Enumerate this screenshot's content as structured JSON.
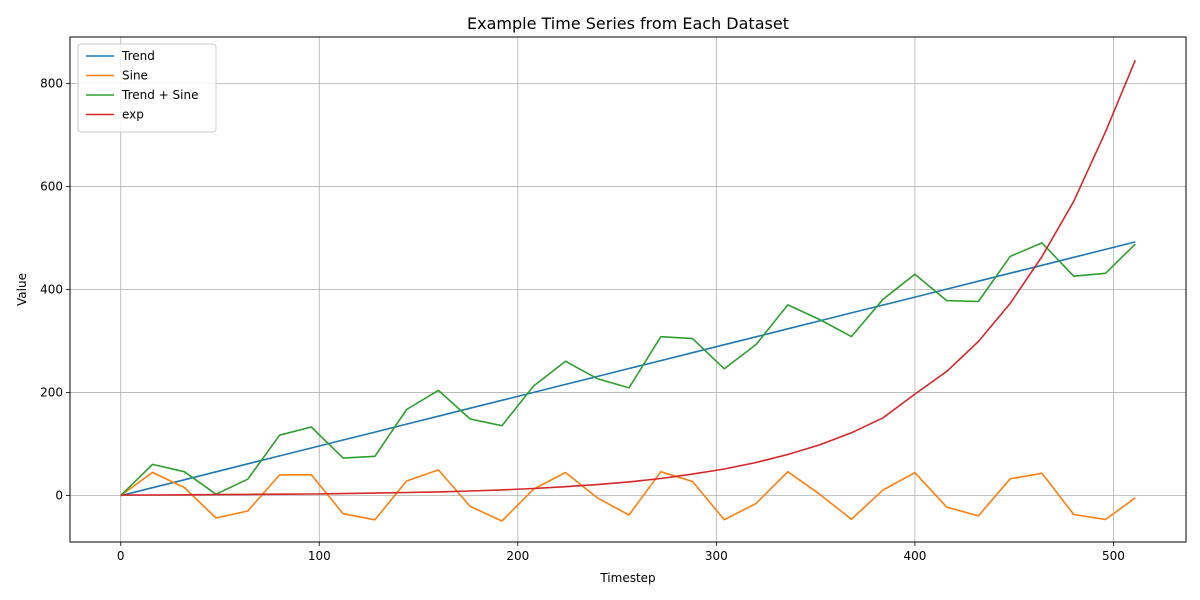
{
  "chart_data": {
    "type": "line",
    "title": "Example Time Series from Each Dataset",
    "xlabel": "Timestep",
    "ylabel": "Value",
    "xlim": [
      -25.55,
      536.55
    ],
    "ylim": [
      -90,
      890
    ],
    "xticks": [
      0,
      100,
      200,
      300,
      400,
      500
    ],
    "yticks": [
      0,
      200,
      400,
      600,
      800
    ],
    "grid": true,
    "legend_position": "top-left",
    "x": [
      0,
      16,
      32,
      48,
      64,
      80,
      96,
      112,
      128,
      144,
      160,
      176,
      192,
      208,
      224,
      240,
      256,
      272,
      288,
      304,
      320,
      336,
      352,
      368,
      384,
      400,
      416,
      432,
      448,
      464,
      480,
      496,
      511
    ],
    "series": [
      {
        "name": "Trend",
        "color": "#1f77b4",
        "values": [
          0,
          15.4,
          30.8,
          46.2,
          61.7,
          77.1,
          92.5,
          107.9,
          123.3,
          138.7,
          154.1,
          169.6,
          185.0,
          200.4,
          215.8,
          231.2,
          246.6,
          262.0,
          277.4,
          292.9,
          308.3,
          323.7,
          339.1,
          354.5,
          369.9,
          385.3,
          400.8,
          416.2,
          431.6,
          447.0,
          462.4,
          477.8,
          492.3
        ]
      },
      {
        "name": "Sine",
        "color": "#ff7f0e",
        "values": [
          0,
          45.1,
          15.7,
          -43.5,
          -29.8,
          40.2,
          40.6,
          -35.0,
          -47.0,
          28.4,
          50.0,
          -20.9,
          -49.3,
          12.6,
          44.9,
          -4.2,
          -37.6,
          46.4,
          27.4,
          -46.7,
          -15.0,
          46.4,
          2.7,
          -45.9,
          11.2,
          44.4,
          -22.3,
          -39.4,
          32.7,
          43.4,
          -36.6,
          -46.4,
          -4.2
        ]
      },
      {
        "name": "Trend + Sine",
        "color": "#2ca02c",
        "values": [
          0,
          60.5,
          46.5,
          2.7,
          31.9,
          117.3,
          133.1,
          72.9,
          76.3,
          167.1,
          204.1,
          148.7,
          135.7,
          213.0,
          260.7,
          227.0,
          209.0,
          308.4,
          304.8,
          246.2,
          293.3,
          370.1,
          341.8,
          308.6,
          381.1,
          429.7,
          378.5,
          376.8,
          464.3,
          490.4,
          425.8,
          431.4,
          488.1
        ]
      },
      {
        "name": "exp",
        "color": "#d62728",
        "values": [
          1.0,
          1.2,
          1.6,
          2.0,
          2.3,
          2.7,
          3.2,
          4.0,
          4.9,
          6.0,
          7.3,
          9.0,
          11.2,
          13.9,
          17.3,
          21.3,
          26.7,
          33.3,
          41.7,
          51.7,
          64.2,
          79.8,
          98.5,
          122.0,
          151.0,
          197.0,
          241.0,
          299.0,
          373.0,
          464.0,
          571.0,
          706.0,
          845.0
        ]
      }
    ]
  }
}
